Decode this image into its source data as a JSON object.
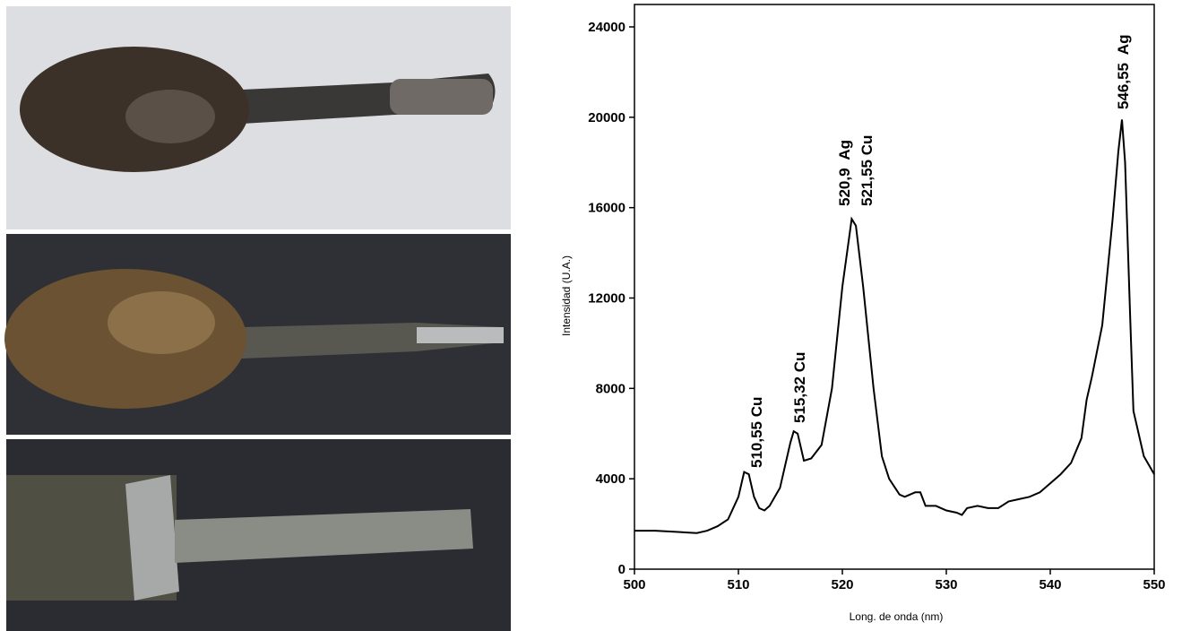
{
  "chart_data": {
    "type": "line",
    "x_label": "Long. de onda (nm)",
    "y_label": "Intensidad (U.A.)",
    "x": [
      500,
      502,
      504,
      506,
      507,
      508,
      509,
      510,
      510.55,
      511,
      511.5,
      512,
      512.5,
      513,
      514,
      515,
      515.32,
      515.7,
      516.3,
      517,
      518,
      519,
      520,
      520.9,
      521.3,
      522,
      523,
      523.8,
      524.5,
      525.5,
      526,
      527,
      527.5,
      528,
      529,
      530,
      531,
      531.5,
      532,
      533,
      534,
      535,
      536,
      537,
      538,
      539,
      540,
      541,
      542,
      543,
      543.5,
      544,
      545,
      546,
      546.55,
      546.9,
      547.2,
      547.7,
      548,
      549,
      550
    ],
    "values": [
      1700,
      1700,
      1650,
      1600,
      1700,
      1900,
      2200,
      3200,
      4300,
      4200,
      3200,
      2700,
      2600,
      2800,
      3600,
      5600,
      6100,
      6000,
      4800,
      4900,
      5500,
      8000,
      12500,
      15500,
      15200,
      12500,
      8000,
      5000,
      4000,
      3300,
      3200,
      3400,
      3400,
      2800,
      2800,
      2600,
      2500,
      2400,
      2700,
      2800,
      2700,
      2700,
      3000,
      3100,
      3200,
      3400,
      3800,
      4200,
      4700,
      5800,
      7500,
      8500,
      10800,
      15500,
      18500,
      19900,
      18000,
      11000,
      7000,
      5000,
      4200
    ],
    "color": "#000000",
    "xlim": [
      500,
      550
    ],
    "xticks": [
      500,
      510,
      520,
      530,
      540,
      550
    ],
    "ylim": [
      0,
      24000
    ],
    "yticks": [
      0,
      4000,
      8000,
      12000,
      16000,
      20000,
      24000
    ],
    "annotations": [
      "510,55 Cu",
      "515,32 Cu",
      "520,9  Ag",
      "521,55 Cu",
      "546,55  Ag"
    ]
  }
}
